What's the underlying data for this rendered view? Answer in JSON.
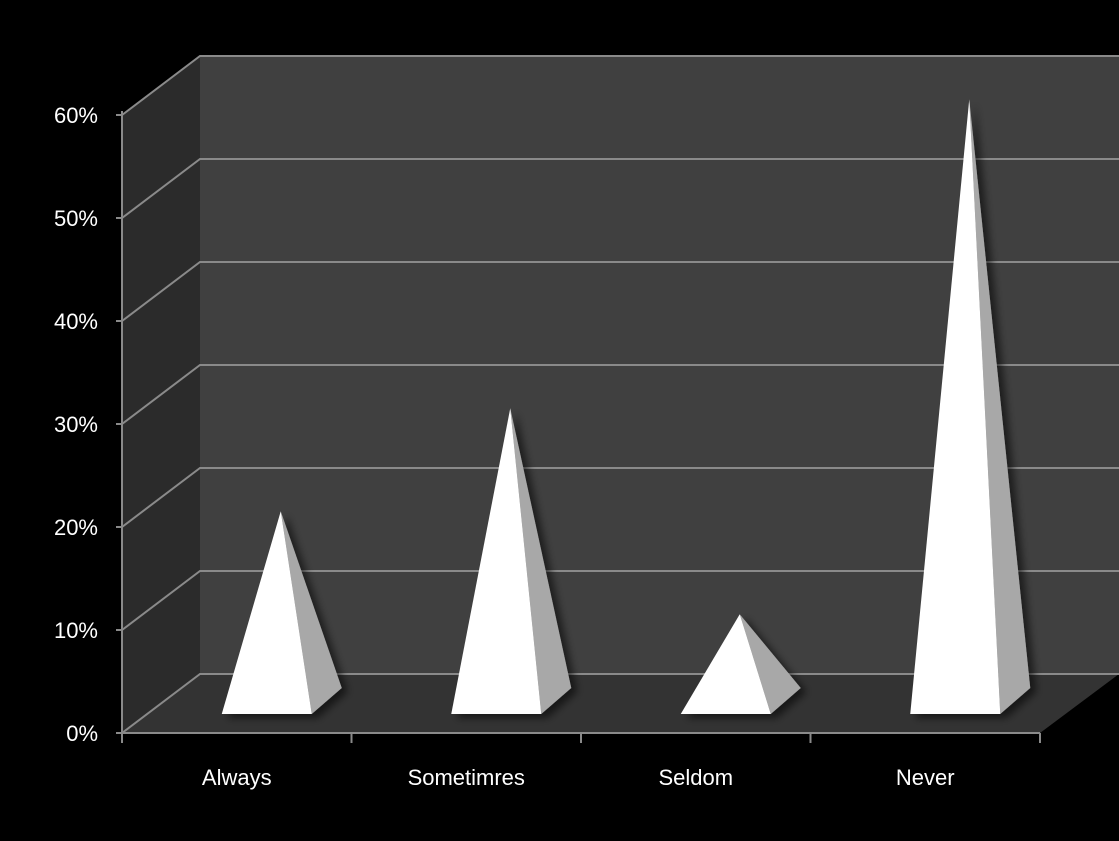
{
  "chart_data": {
    "type": "bar",
    "style": "3d-pyramid",
    "categories": [
      "Always",
      "Sometimres",
      "Seldom",
      "Never"
    ],
    "values": [
      16,
      26,
      6,
      56
    ],
    "value_unit": "%",
    "title": "",
    "xlabel": "",
    "ylabel": "",
    "ylim": [
      0,
      60
    ],
    "yticks": [
      "0%",
      "10%",
      "20%",
      "30%",
      "40%",
      "50%",
      "60%"
    ],
    "grid": true,
    "legend": "none"
  },
  "colors": {
    "background": "#000000",
    "back_wall": "#404040",
    "side_wall": "#2b2b2b",
    "floor": "#333333",
    "gridline": "#8a8a8a",
    "pyramid_front": "#ffffff",
    "pyramid_side": "#a8a8a8",
    "axis_text": "#ffffff"
  }
}
